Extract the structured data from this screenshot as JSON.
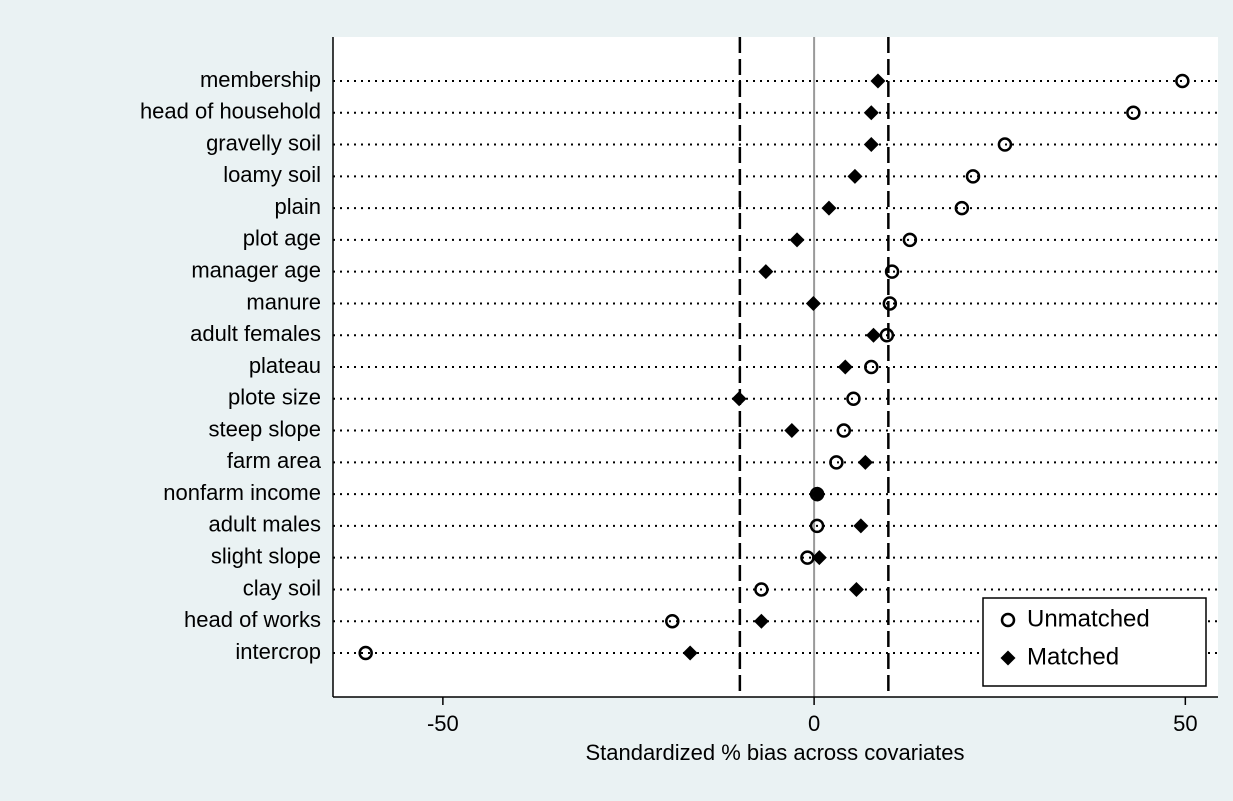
{
  "chart_data": {
    "type": "dot",
    "xlabel": "Standardized % bias across covariates",
    "categories": [
      "membership",
      "head of household",
      "gravelly soil",
      "loamy soil",
      "plain",
      "plot age",
      "manager age",
      "manure",
      "adult females",
      "plateau",
      "plote size",
      "steep slope",
      "farm area",
      "nonfarm income",
      "adult males",
      "slight slope",
      "clay soil",
      "head of works",
      "intercrop"
    ],
    "series": [
      {
        "name": "Unmatched",
        "marker": "circle",
        "color": "#000000",
        "values": [
          49.6,
          43.0,
          25.7,
          21.4,
          19.9,
          12.9,
          10.5,
          10.2,
          9.8,
          7.7,
          5.3,
          4.0,
          3.0,
          0.4,
          0.4,
          -0.9,
          -7.1,
          -19.1,
          -60.4
        ]
      },
      {
        "name": "Matched",
        "marker": "diamond",
        "color": "#000000",
        "values": [
          8.6,
          7.7,
          7.7,
          5.5,
          2.0,
          -2.3,
          -6.5,
          -0.1,
          8.0,
          4.2,
          -10.1,
          -3.0,
          6.9,
          0.5,
          6.3,
          0.7,
          5.7,
          -7.1,
          -16.7
        ]
      }
    ],
    "xlim": [
      -64.8,
      54.4
    ],
    "xticks": [
      -50,
      0,
      50
    ],
    "reference_lines": [
      -10,
      10
    ],
    "zero_line": 0,
    "legend": "bottom-right"
  }
}
